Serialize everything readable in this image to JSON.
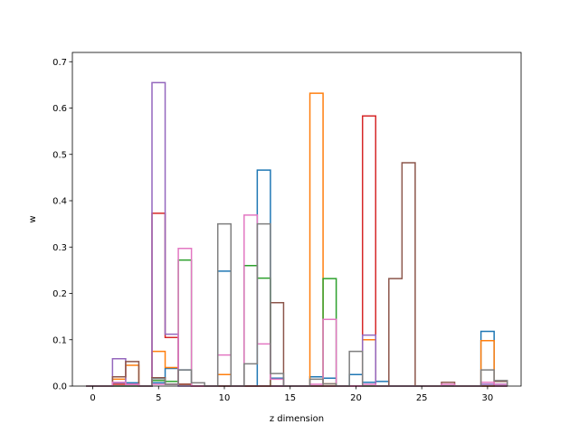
{
  "chart_data": {
    "type": "histogram-step",
    "xlabel": "z dimension",
    "ylabel": "w",
    "xlim": [
      -1.55,
      32.55
    ],
    "ylim": [
      0,
      0.72
    ],
    "xticks": [
      0,
      5,
      10,
      15,
      20,
      25,
      30
    ],
    "yticks": [
      0.0,
      0.1,
      0.2,
      0.3,
      0.4,
      0.5,
      0.6,
      0.7
    ],
    "bins": [
      0,
      1,
      2,
      3,
      4,
      5,
      6,
      7,
      8,
      9,
      10,
      11,
      12,
      13,
      14,
      15,
      16,
      17,
      18,
      19,
      20,
      21,
      22,
      23,
      24,
      25,
      26,
      27,
      28,
      29,
      30,
      31
    ],
    "bin_width": 1,
    "series": [
      {
        "color": "#1f77b4",
        "values": [
          0,
          0,
          0.007,
          0.007,
          0,
          0.007,
          0.038,
          0.035,
          0,
          0,
          0.248,
          0,
          0,
          0.466,
          0.017,
          0,
          0,
          0.02,
          0.017,
          0,
          0.025,
          0.008,
          0.01,
          0,
          0,
          0,
          0,
          0,
          0,
          0,
          0.118,
          0.004
        ]
      },
      {
        "color": "#ff7f0e",
        "values": [
          0,
          0,
          0.015,
          0.045,
          0,
          0.075,
          0.04,
          0.004,
          0,
          0,
          0.025,
          0,
          0,
          0,
          0,
          0,
          0,
          0.632,
          0.005,
          0,
          0,
          0.1,
          0,
          0,
          0,
          0,
          0,
          0,
          0,
          0,
          0.098,
          0
        ]
      },
      {
        "color": "#2ca02c",
        "values": [
          0,
          0,
          0,
          0,
          0,
          0.012,
          0.01,
          0.272,
          0,
          0,
          0,
          0,
          0.26,
          0.233,
          0,
          0,
          0,
          0,
          0.232,
          0,
          0,
          0,
          0,
          0,
          0,
          0,
          0,
          0,
          0,
          0,
          0,
          0
        ]
      },
      {
        "color": "#d62728",
        "values": [
          0,
          0,
          0.004,
          0.004,
          0,
          0.373,
          0.105,
          0.004,
          0,
          0,
          0,
          0,
          0,
          0,
          0,
          0,
          0,
          0,
          0,
          0,
          0,
          0.583,
          0,
          0,
          0,
          0,
          0,
          0,
          0,
          0,
          0,
          0
        ]
      },
      {
        "color": "#9467bd",
        "values": [
          0,
          0,
          0.059,
          0.004,
          0,
          0.655,
          0.112,
          0,
          0,
          0,
          0,
          0,
          0,
          0,
          0,
          0,
          0,
          0,
          0,
          0,
          0,
          0.11,
          0,
          0,
          0,
          0,
          0,
          0,
          0,
          0,
          0.004,
          0
        ]
      },
      {
        "color": "#8c564b",
        "values": [
          0,
          0,
          0.02,
          0.053,
          0,
          0.018,
          0.004,
          0.004,
          0,
          0,
          0,
          0,
          0,
          0,
          0.18,
          0,
          0,
          0,
          0,
          0,
          0,
          0,
          0,
          0.232,
          0.482,
          0,
          0,
          0.008,
          0,
          0,
          0,
          0.01
        ]
      },
      {
        "color": "#e377c2",
        "values": [
          0,
          0,
          0.008,
          0.004,
          0,
          0.004,
          0.004,
          0.297,
          0,
          0,
          0.067,
          0,
          0.369,
          0.091,
          0.015,
          0,
          0,
          0.004,
          0.144,
          0,
          0,
          0.004,
          0,
          0,
          0,
          0,
          0,
          0.004,
          0,
          0,
          0.008,
          0.004
        ]
      },
      {
        "color": "#7f7f7f",
        "values": [
          0,
          0,
          0,
          0,
          0,
          0.016,
          0.004,
          0.035,
          0.007,
          0,
          0.35,
          0,
          0.048,
          0.35,
          0.027,
          0,
          0,
          0.015,
          0.005,
          0,
          0.075,
          0,
          0,
          0,
          0,
          0,
          0,
          0,
          0,
          0,
          0.035,
          0.012
        ]
      }
    ]
  }
}
